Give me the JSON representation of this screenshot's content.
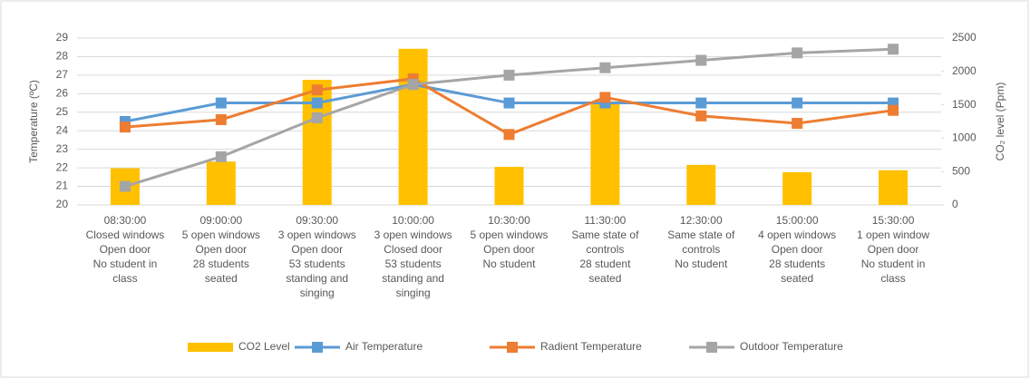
{
  "chart_data": {
    "type": "combo",
    "categories": [
      [
        "08:30:00",
        "Closed windows",
        "Open door",
        "No student in",
        "class"
      ],
      [
        "09:00:00",
        "5 open windows",
        "Open door",
        "28 students",
        "seated"
      ],
      [
        "09:30:00",
        "3 open windows",
        "Open door",
        "53 students",
        "standing and",
        "singing"
      ],
      [
        "10:00:00",
        "3 open windows",
        "Closed door",
        "53 students",
        "standing and",
        "singing"
      ],
      [
        "10:30:00",
        "5 open windows",
        "Open door",
        "No student"
      ],
      [
        "11:30:00",
        "Same state of",
        "controls",
        "28 student",
        "seated"
      ],
      [
        "12:30:00",
        "Same state of",
        "controls",
        "No student"
      ],
      [
        "15:00:00",
        "4 open windows",
        "Open door",
        "28 students",
        "seated"
      ],
      [
        "15:30:00",
        "1 open window",
        "Open door",
        "No student in",
        "class"
      ]
    ],
    "ylabel": "Temperature (ºC)",
    "y2label": "CO₂ level (Ppm)",
    "ylim": [
      20,
      29
    ],
    "yticks": [
      20,
      21,
      22,
      23,
      24,
      25,
      26,
      27,
      28,
      29
    ],
    "y2lim": [
      0,
      2500
    ],
    "y2ticks": [
      0,
      500,
      1000,
      1500,
      2000,
      2500
    ],
    "grid": true,
    "legend": "bottom",
    "series": [
      {
        "name": "CO2 Level",
        "type": "bar",
        "axis": "y2",
        "color": "#FFC000",
        "values": [
          550,
          650,
          1875,
          2340,
          570,
          1550,
          600,
          490,
          520
        ]
      },
      {
        "name": "Air Temperature",
        "type": "line",
        "color": "#5B9BD5",
        "values": [
          24.5,
          25.5,
          25.5,
          26.5,
          25.5,
          25.5,
          25.5,
          25.5,
          25.5
        ]
      },
      {
        "name": "Radient Temperature",
        "type": "line",
        "color": "#ED7D31",
        "values": [
          24.2,
          24.6,
          26.2,
          26.8,
          23.8,
          25.8,
          24.8,
          24.4,
          25.1
        ]
      },
      {
        "name": "Outdoor Temperature",
        "type": "line",
        "color": "#A5A5A5",
        "values": [
          21.0,
          22.6,
          24.7,
          26.5,
          27.0,
          27.4,
          27.8,
          28.2,
          28.4
        ]
      }
    ]
  }
}
